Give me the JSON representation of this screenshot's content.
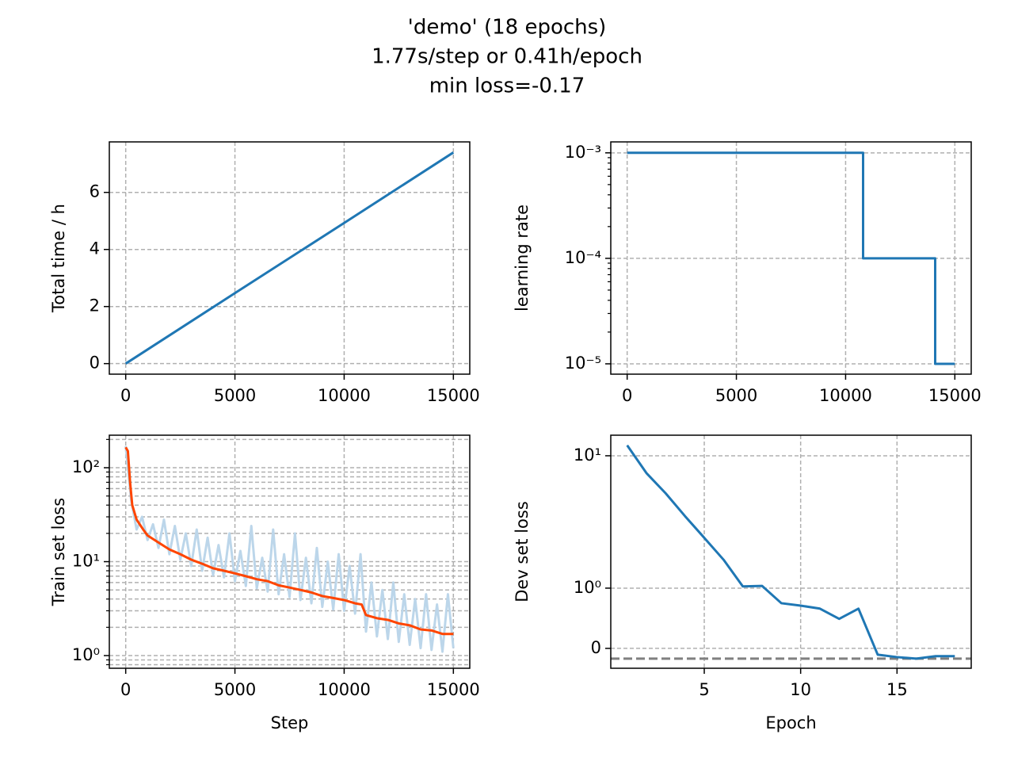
{
  "suptitle": [
    "'demo' (18 epochs)",
    "1.77s/step or 0.41h/epoch",
    "min loss=-0.17"
  ],
  "chart_data": [
    {
      "type": "line",
      "ylabel": "Total time / h",
      "yscale": "linear",
      "grid": true,
      "xlim": [
        -750,
        15750
      ],
      "ylim": [
        -0.37,
        7.77
      ],
      "xticks": [
        0,
        5000,
        10000,
        15000
      ],
      "yticks": [
        0,
        2,
        4,
        6
      ],
      "series": [
        {
          "color": "#1f77b4",
          "x": [
            0,
            5000,
            10000,
            15000
          ],
          "values": [
            0,
            2.47,
            4.93,
            7.4
          ]
        }
      ]
    },
    {
      "type": "line",
      "ylabel": "learning rate",
      "yscale": "log",
      "grid": true,
      "xlim": [
        -750,
        15750
      ],
      "ylim": [
        7.98e-06,
        0.00127
      ],
      "xticks": [
        0,
        5000,
        10000,
        15000
      ],
      "yticks": [
        {
          "value": 1e-05,
          "label": "10⁻⁵"
        },
        {
          "value": 0.0001,
          "label": "10⁻⁴"
        },
        {
          "value": 0.001,
          "label": "10⁻³"
        }
      ],
      "minor_yticks": [
        2e-05,
        3e-05,
        4e-05,
        5e-05,
        6e-05,
        7e-05,
        8e-05,
        9e-05,
        0.0002,
        0.0003,
        0.0004,
        0.0005,
        0.0006,
        0.0007,
        0.0008,
        0.0009
      ],
      "series": [
        {
          "color": "#1f77b4",
          "x": [
            0,
            10800,
            10800,
            14100,
            14100,
            15000
          ],
          "values": [
            0.001,
            0.001,
            0.0001,
            0.0001,
            1e-05,
            1e-05
          ]
        }
      ]
    },
    {
      "type": "line",
      "xlabel": "Step",
      "ylabel": "Train set loss",
      "yscale": "log",
      "grid": true,
      "minor_grid": true,
      "xlim": [
        -750,
        15750
      ],
      "ylim": [
        0.733,
        222
      ],
      "xticks": [
        0,
        5000,
        10000,
        15000
      ],
      "yticks": [
        {
          "value": 1,
          "label": "10⁰"
        },
        {
          "value": 10,
          "label": "10¹"
        },
        {
          "value": 100,
          "label": "10²"
        }
      ],
      "minor_yticks": [
        0.8,
        0.9,
        2,
        3,
        4,
        5,
        6,
        7,
        8,
        9,
        20,
        30,
        40,
        50,
        60,
        70,
        80,
        90,
        200
      ],
      "series": [
        {
          "color": "#bcd6ea",
          "x": [
            0,
            250,
            500,
            750,
            1000,
            1250,
            1500,
            1750,
            2000,
            2250,
            2500,
            2750,
            3000,
            3250,
            3500,
            3750,
            4000,
            4250,
            4500,
            4750,
            5000,
            5250,
            5500,
            5750,
            6000,
            6250,
            6500,
            6750,
            7000,
            7250,
            7500,
            7750,
            8000,
            8250,
            8500,
            8750,
            9000,
            9250,
            9500,
            9750,
            10000,
            10250,
            10500,
            10750,
            11000,
            11250,
            11500,
            11750,
            12000,
            12250,
            12500,
            12750,
            13000,
            13250,
            13500,
            13750,
            14000,
            14250,
            14500,
            14750,
            15000
          ],
          "values": [
            170,
            45,
            22,
            30,
            17,
            25,
            14,
            28,
            12,
            24,
            10.5,
            20,
            9,
            22,
            8,
            18,
            7.2,
            15,
            6.8,
            20,
            6.2,
            13,
            5.5,
            24,
            5.2,
            11,
            4.8,
            22,
            4.5,
            12,
            4.2,
            20,
            3.9,
            11,
            3.6,
            14,
            3.3,
            10,
            3.1,
            12,
            3,
            9,
            2.8,
            12,
            1.8,
            6,
            1.6,
            5,
            1.5,
            6,
            1.4,
            4.5,
            1.3,
            4,
            1.2,
            4.5,
            1.15,
            3.5,
            1.1,
            4.5,
            1.2
          ]
        },
        {
          "color": "#ff4500",
          "x": [
            0,
            100,
            200,
            300,
            500,
            800,
            1000,
            1500,
            2000,
            2500,
            3000,
            3500,
            4000,
            4500,
            5000,
            5500,
            6000,
            6500,
            7000,
            7500,
            8000,
            8500,
            9000,
            9500,
            10000,
            10500,
            10800,
            11000,
            11500,
            12000,
            12500,
            13000,
            13500,
            14000,
            14500,
            15000
          ],
          "values": [
            165,
            150,
            70,
            40,
            28,
            22,
            19,
            16,
            13.5,
            12,
            10.5,
            9.5,
            8.5,
            8,
            7.5,
            7,
            6.5,
            6.2,
            5.6,
            5.3,
            5,
            4.7,
            4.3,
            4.1,
            3.9,
            3.6,
            3.5,
            2.7,
            2.5,
            2.4,
            2.2,
            2.1,
            1.9,
            1.85,
            1.7,
            1.7
          ]
        }
      ]
    },
    {
      "type": "line",
      "xlabel": "Epoch",
      "ylabel": "Dev set loss",
      "yscale": "symlog",
      "linthresh": 1,
      "linscale": 0.455,
      "grid": true,
      "xlim": [
        0.15,
        18.85
      ],
      "ylim": [
        -0.33,
        14.3
      ],
      "xticks": [
        5,
        10,
        15
      ],
      "yticks": [
        0,
        {
          "value": 1,
          "label": "10⁰"
        },
        {
          "value": 10,
          "label": "10¹"
        }
      ],
      "hlines": [
        {
          "value": -0.17,
          "color": "#808080"
        }
      ],
      "series": [
        {
          "color": "#1f77b4",
          "x": [
            1,
            2,
            3,
            4,
            5,
            6,
            7,
            8,
            9,
            10,
            11,
            12,
            13,
            14,
            15,
            16,
            17,
            18
          ],
          "values": [
            12,
            7.4,
            5.2,
            3.5,
            2.4,
            1.64,
            1.03,
            1.04,
            0.75,
            0.71,
            0.66,
            0.49,
            0.66,
            -0.105,
            -0.145,
            -0.17,
            -0.13,
            -0.13
          ]
        }
      ]
    }
  ]
}
